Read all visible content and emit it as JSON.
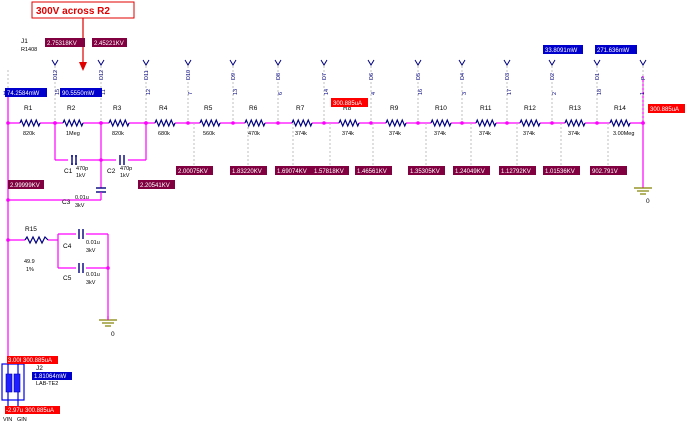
{
  "title": "300V across R2",
  "colors": {
    "wire": "#ff00ff",
    "voltage_tag": "#800040",
    "power_tag": "#0000cc",
    "current_tag": "#ff0000"
  },
  "j1": {
    "ref": "J1",
    "value": "R1408"
  },
  "j2": {
    "ref": "J2",
    "value": "LAB-TE2"
  },
  "pins": {
    "vin": "VIN",
    "gin": "GIN"
  },
  "ground_label": "0",
  "top_nodes": [
    "D12",
    "D12",
    "D11",
    "D10",
    "D9",
    "D8",
    "D7",
    "D6",
    "D5",
    "D4",
    "D3",
    "D2",
    "D1",
    "P"
  ],
  "node_numbers": [
    "10",
    "15",
    "11",
    "12",
    "7",
    "13",
    "6",
    "14",
    "4",
    "16",
    "3",
    "17",
    "2",
    "18",
    "1",
    "20"
  ],
  "resistors": [
    {
      "ref": "R1",
      "value": "820k"
    },
    {
      "ref": "R2",
      "value": "1Meg"
    },
    {
      "ref": "R3",
      "value": "820k"
    },
    {
      "ref": "R4",
      "value": "680k"
    },
    {
      "ref": "R5",
      "value": "560k"
    },
    {
      "ref": "R6",
      "value": "470k"
    },
    {
      "ref": "R7",
      "value": "374k"
    },
    {
      "ref": "R8",
      "value": "374k"
    },
    {
      "ref": "R9",
      "value": "374k"
    },
    {
      "ref": "R10",
      "value": "374k"
    },
    {
      "ref": "R11",
      "value": "374k"
    },
    {
      "ref": "R12",
      "value": "374k"
    },
    {
      "ref": "R13",
      "value": "374k"
    },
    {
      "ref": "R14",
      "value": "3.00Meg"
    }
  ],
  "r15": {
    "ref": "R15",
    "value": "49.9",
    "tol": "1%"
  },
  "capacitors": [
    {
      "ref": "C1",
      "value": "470p",
      "rating": "1kV"
    },
    {
      "ref": "C2",
      "value": "470p",
      "rating": "1kV"
    },
    {
      "ref": "C3",
      "value": "0.01u",
      "rating": "3kV"
    },
    {
      "ref": "C4",
      "value": "0.01u",
      "rating": "3kV"
    },
    {
      "ref": "C5",
      "value": "0.01u",
      "rating": "3kV"
    }
  ],
  "tags": {
    "v1": "2.75318KV",
    "v2": "2.45221KV",
    "v_low": "2.20541KV",
    "v_left": "2.99999KV",
    "divider": [
      "2.00075KV",
      "1.83220KV",
      "1.69074KV",
      "1.57818KV",
      "1.46561KV",
      "1.35305KV",
      "1.24049KV",
      "1.12792KV",
      "1.01536KV",
      "902.791V"
    ],
    "p_r1": "74.2584mW",
    "p_r2": "90.5550mW",
    "p_d2": "33.8091mW",
    "p_d1": "271.636mW",
    "p_j2": "1.81064mW",
    "i_r8": "300.885uA",
    "i_out": "300.885uA",
    "i_j2_top": "300.885uA",
    "i_j2_bot": "300.885uA",
    "v_j2_top": "3.00KV",
    "v_j2_bot": "-2.97u"
  }
}
